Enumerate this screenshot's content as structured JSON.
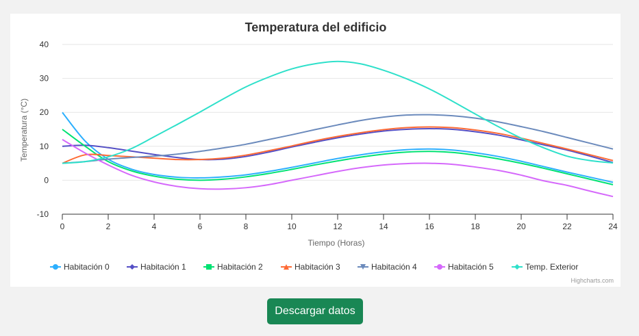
{
  "chart_data": {
    "type": "line",
    "title": "Temperatura del edificio",
    "subtitle": "",
    "xlabel": "Tiempo (Horas)",
    "ylabel": "Temperatura (°C)",
    "xlim": [
      0,
      24
    ],
    "ylim": [
      -10,
      40
    ],
    "x_ticks": [
      0,
      2,
      4,
      6,
      8,
      10,
      12,
      14,
      16,
      18,
      20,
      22,
      24
    ],
    "y_ticks": [
      -10,
      0,
      10,
      20,
      30,
      40
    ],
    "grid": true,
    "legend_position": "bottom",
    "x": [
      0,
      1,
      2,
      3,
      4,
      5,
      6,
      7,
      8,
      9,
      10,
      11,
      12,
      13,
      14,
      15,
      16,
      17,
      18,
      19,
      20,
      21,
      22,
      23,
      24
    ],
    "series": [
      {
        "name": "Habitación 0",
        "color": "#2caffe",
        "marker": "circle",
        "values": [
          20,
          11.5,
          6.2,
          3.3,
          1.7,
          0.9,
          0.7,
          1.0,
          1.6,
          2.6,
          3.8,
          5.1,
          6.4,
          7.5,
          8.4,
          9.0,
          9.2,
          8.9,
          8.1,
          7.0,
          5.6,
          4.0,
          2.4,
          0.9,
          -0.6
        ]
      },
      {
        "name": "Habitación 1",
        "color": "#544fc5",
        "marker": "diamond",
        "values": [
          10,
          10.3,
          9.6,
          8.6,
          7.6,
          6.7,
          6.1,
          6.2,
          7.0,
          8.3,
          9.8,
          11.2,
          12.5,
          13.6,
          14.5,
          15.0,
          15.2,
          15.0,
          14.3,
          13.3,
          11.9,
          10.4,
          8.9,
          7.1,
          5.2
        ]
      },
      {
        "name": "Habitación 2",
        "color": "#00e272",
        "marker": "square",
        "values": [
          15,
          10,
          5.5,
          2.8,
          1.2,
          0.3,
          0.0,
          0.3,
          1.0,
          2.0,
          3.2,
          4.5,
          5.7,
          6.8,
          7.7,
          8.3,
          8.5,
          8.2,
          7.4,
          6.3,
          5.0,
          3.5,
          1.9,
          0.3,
          -1.3
        ]
      },
      {
        "name": "Habitación 3",
        "color": "#fe6a35",
        "marker": "triangle",
        "values": [
          5,
          7.5,
          7.3,
          6.9,
          6.5,
          6.1,
          6.1,
          6.5,
          7.4,
          8.7,
          10.1,
          11.6,
          12.9,
          14.0,
          14.9,
          15.5,
          15.7,
          15.5,
          14.8,
          13.8,
          12.4,
          10.8,
          9.2,
          7.5,
          5.8
        ]
      },
      {
        "name": "Habitación 4",
        "color": "#6b8abc",
        "marker": "triangle-down",
        "values": [
          5,
          5.5,
          6.2,
          6.7,
          7.1,
          7.7,
          8.5,
          9.5,
          10.6,
          12.0,
          13.4,
          14.9,
          16.3,
          17.6,
          18.6,
          19.2,
          19.3,
          19.0,
          18.3,
          17.2,
          15.8,
          14.3,
          12.6,
          10.9,
          9.2
        ]
      },
      {
        "name": "Habitación 5",
        "color": "#d568fb",
        "marker": "circle",
        "values": [
          12,
          8,
          4.5,
          1.5,
          -0.5,
          -1.8,
          -2.5,
          -2.6,
          -2.2,
          -1.3,
          0.0,
          1.3,
          2.6,
          3.7,
          4.5,
          4.9,
          5.0,
          4.7,
          3.9,
          2.9,
          1.5,
          -0.2,
          -1.5,
          -3.2,
          -4.8
        ]
      },
      {
        "name": "Temp. Exterior",
        "color": "#2ee0ca",
        "marker": "diamond",
        "values": [
          5,
          5.5,
          6.9,
          9.3,
          12.8,
          16.4,
          20.1,
          23.9,
          27.5,
          30.4,
          32.8,
          34.3,
          35,
          34.3,
          32.4,
          29.9,
          26.9,
          23.3,
          19.5,
          15.8,
          12.4,
          9.5,
          7.1,
          5.8,
          5.1
        ]
      }
    ],
    "credits": "Highcharts.com"
  },
  "button": {
    "label": "Descargar datos"
  }
}
